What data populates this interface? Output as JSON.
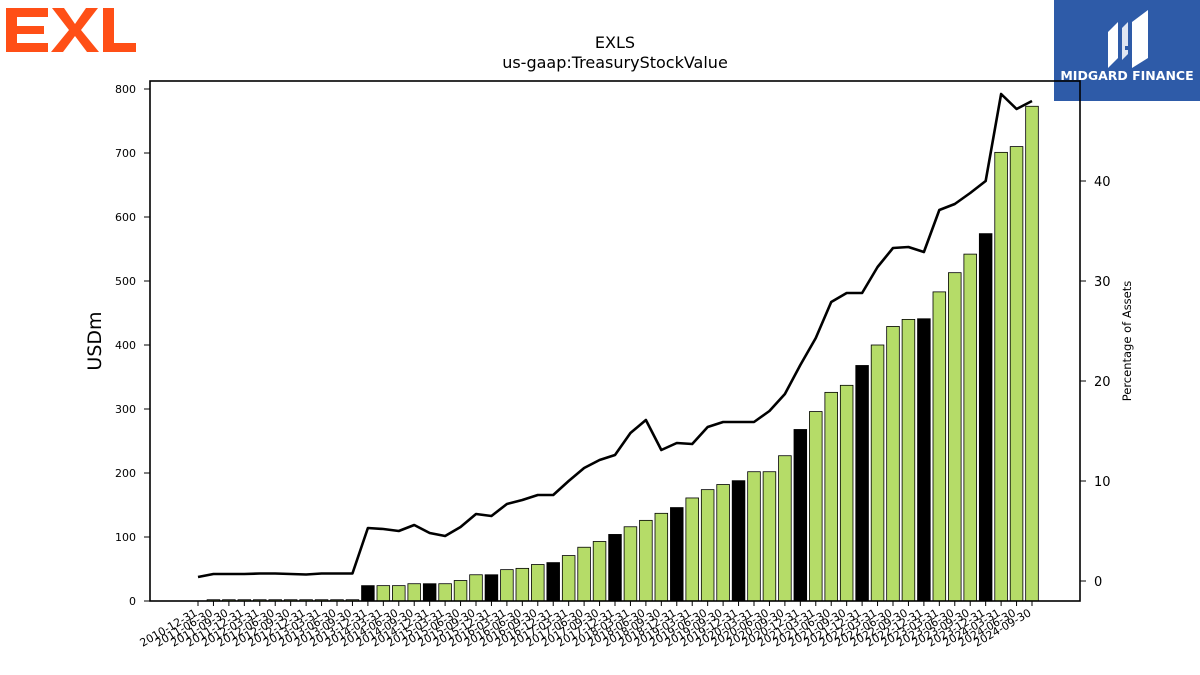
{
  "logos": {
    "left": "EXL",
    "right": "MIDGARD FINANCE"
  },
  "colors": {
    "bar_default": "#b5dc68",
    "bar_highlight": "#000000",
    "line": "#000000",
    "exl_orange": "#ff4f16",
    "midgard_blue": "#2e5ba8"
  },
  "chart_data": {
    "type": "bar",
    "title": "EXLS",
    "subtitle": "us-gaap:TreasuryStockValue",
    "ylabel": "USDm",
    "y2label": "Percentage of Assets",
    "ylim": [
      0,
      800
    ],
    "y2lim": [
      -2,
      50
    ],
    "yticks": [
      0,
      100,
      200,
      300,
      400,
      500,
      600,
      700,
      800
    ],
    "y2ticks": [
      0,
      10,
      20,
      30,
      40
    ],
    "grid": false,
    "categories": [
      "2010-12-31",
      "2011-06-30",
      "2011-09-30",
      "2011-12-31",
      "2012-03-31",
      "2012-06-30",
      "2012-09-30",
      "2012-12-31",
      "2013-03-31",
      "2013-06-30",
      "2013-09-30",
      "2013-12-31",
      "2014-03-31",
      "2014-06-30",
      "2014-09-30",
      "2014-12-31",
      "2015-03-31",
      "2015-06-30",
      "2015-09-30",
      "2015-12-31",
      "2016-03-31",
      "2016-06-30",
      "2016-09-30",
      "2016-12-31",
      "2017-03-31",
      "2017-06-30",
      "2017-09-30",
      "2017-12-31",
      "2018-03-31",
      "2018-06-30",
      "2018-09-30",
      "2018-12-31",
      "2019-03-31",
      "2019-06-30",
      "2019-09-30",
      "2019-12-31",
      "2020-03-31",
      "2020-06-30",
      "2020-09-30",
      "2020-12-31",
      "2021-03-31",
      "2021-06-30",
      "2021-09-30",
      "2021-12-31",
      "2022-03-31",
      "2022-06-30",
      "2022-09-30",
      "2022-12-31",
      "2023-03-31",
      "2023-06-30",
      "2023-09-30",
      "2023-12-31",
      "2024-03-31",
      "2024-06-30",
      "2024-09-30"
    ],
    "series": [
      {
        "kind": "bar",
        "values": [
          0,
          2,
          2,
          2,
          2,
          2,
          2,
          2,
          2,
          2,
          2,
          24,
          24,
          24,
          27,
          27,
          27,
          32,
          41,
          41,
          49,
          51,
          57,
          60,
          71,
          84,
          93,
          104,
          116,
          126,
          137,
          146,
          161,
          174,
          182,
          188,
          202,
          202,
          227,
          268,
          296,
          326,
          337,
          368,
          400,
          429,
          440,
          441,
          483,
          513,
          542,
          574,
          701,
          710,
          773
        ],
        "highlight": [
          false,
          false,
          false,
          false,
          false,
          false,
          false,
          false,
          false,
          false,
          false,
          true,
          false,
          false,
          false,
          true,
          false,
          false,
          false,
          true,
          false,
          false,
          false,
          true,
          false,
          false,
          false,
          true,
          false,
          false,
          false,
          true,
          false,
          false,
          false,
          true,
          false,
          false,
          false,
          true,
          false,
          false,
          false,
          true,
          false,
          false,
          false,
          true,
          false,
          false,
          false,
          true,
          false,
          false,
          false
        ]
      },
      {
        "kind": "line",
        "axis": "right",
        "values": [
          0.4,
          0.7,
          0.7,
          0.7,
          0.75,
          0.75,
          0.7,
          0.65,
          0.75,
          0.75,
          0.75,
          5.3,
          5.2,
          5.0,
          5.6,
          4.8,
          4.5,
          5.4,
          6.7,
          6.5,
          7.7,
          8.1,
          8.6,
          8.6,
          10.0,
          11.3,
          12.1,
          12.6,
          14.8,
          16.1,
          13.1,
          13.8,
          13.7,
          15.4,
          15.9,
          15.9,
          15.9,
          17.0,
          18.7,
          21.6,
          24.3,
          27.9,
          28.8,
          28.8,
          31.4,
          33.3,
          33.4,
          32.9,
          37.1,
          37.7,
          38.8,
          40.0,
          48.7,
          47.2,
          48.0
        ]
      }
    ]
  }
}
